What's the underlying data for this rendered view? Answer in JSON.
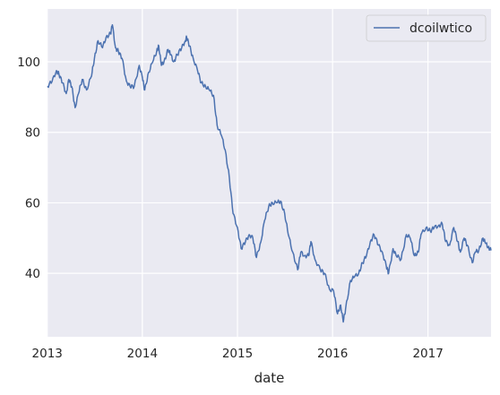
{
  "chart_data": {
    "type": "line",
    "title": "",
    "xlabel": "date",
    "ylabel": "",
    "xlim": [
      "2013-01-02",
      "2017-08-31"
    ],
    "ylim": [
      22,
      115
    ],
    "x_ticks": [
      "2013",
      "2014",
      "2015",
      "2016",
      "2017"
    ],
    "y_ticks": [
      40,
      60,
      80,
      100
    ],
    "grid": true,
    "legend_position": "top-right",
    "colors": {
      "background": "#eaeaf2",
      "grid": "#ffffff",
      "line": "#4c72b0"
    },
    "series": [
      {
        "name": "dcoilwtico",
        "points": [
          [
            "2013-01-02",
            93.1
          ],
          [
            "2013-01-20",
            94.5
          ],
          [
            "2013-02-05",
            97.5
          ],
          [
            "2013-02-15",
            96.5
          ],
          [
            "2013-03-01",
            94.0
          ],
          [
            "2013-03-15",
            91.0
          ],
          [
            "2013-03-25",
            95.0
          ],
          [
            "2013-04-05",
            93.0
          ],
          [
            "2013-04-18",
            87.0
          ],
          [
            "2013-05-01",
            91.0
          ],
          [
            "2013-05-15",
            95.0
          ],
          [
            "2013-06-01",
            92.0
          ],
          [
            "2013-06-20",
            96.0
          ],
          [
            "2013-07-01",
            101.0
          ],
          [
            "2013-07-15",
            106.0
          ],
          [
            "2013-08-01",
            104.0
          ],
          [
            "2013-08-15",
            107.0
          ],
          [
            "2013-09-01",
            108.0
          ],
          [
            "2013-09-08",
            110.5
          ],
          [
            "2013-09-20",
            104.0
          ],
          [
            "2013-10-01",
            103.0
          ],
          [
            "2013-10-15",
            101.0
          ],
          [
            "2013-11-01",
            94.5
          ],
          [
            "2013-11-15",
            93.0
          ],
          [
            "2013-12-01",
            93.0
          ],
          [
            "2013-12-20",
            99.0
          ],
          [
            "2014-01-01",
            95.5
          ],
          [
            "2014-01-10",
            92.0
          ],
          [
            "2014-01-25",
            97.0
          ],
          [
            "2014-02-10",
            100.0
          ],
          [
            "2014-02-25",
            103.0
          ],
          [
            "2014-03-05",
            104.5
          ],
          [
            "2014-03-15",
            99.0
          ],
          [
            "2014-03-25",
            100.0
          ],
          [
            "2014-04-10",
            103.5
          ],
          [
            "2014-04-20",
            102.0
          ],
          [
            "2014-05-01",
            100.0
          ],
          [
            "2014-05-15",
            102.0
          ],
          [
            "2014-06-01",
            104.0
          ],
          [
            "2014-06-15",
            106.0
          ],
          [
            "2014-06-20",
            107.0
          ],
          [
            "2014-07-01",
            104.5
          ],
          [
            "2014-07-15",
            101.0
          ],
          [
            "2014-08-01",
            97.5
          ],
          [
            "2014-08-15",
            94.0
          ],
          [
            "2014-09-01",
            93.0
          ],
          [
            "2014-09-15",
            92.0
          ],
          [
            "2014-10-01",
            90.5
          ],
          [
            "2014-10-15",
            82.0
          ],
          [
            "2014-11-01",
            79.0
          ],
          [
            "2014-11-15",
            75.0
          ],
          [
            "2014-12-01",
            67.0
          ],
          [
            "2014-12-15",
            57.0
          ],
          [
            "2015-01-01",
            53.0
          ],
          [
            "2015-01-15",
            47.0
          ],
          [
            "2015-02-01",
            49.0
          ],
          [
            "2015-02-15",
            51.0
          ],
          [
            "2015-03-01",
            50.0
          ],
          [
            "2015-03-15",
            44.5
          ],
          [
            "2015-04-01",
            49.0
          ],
          [
            "2015-04-15",
            55.0
          ],
          [
            "2015-05-01",
            59.0
          ],
          [
            "2015-05-15",
            60.0
          ],
          [
            "2015-06-01",
            60.0
          ],
          [
            "2015-06-15",
            60.5
          ],
          [
            "2015-07-01",
            57.0
          ],
          [
            "2015-07-15",
            51.0
          ],
          [
            "2015-08-01",
            46.0
          ],
          [
            "2015-08-20",
            41.0
          ],
          [
            "2015-09-01",
            46.0
          ],
          [
            "2015-09-15",
            45.0
          ],
          [
            "2015-10-01",
            45.0
          ],
          [
            "2015-10-10",
            49.0
          ],
          [
            "2015-10-25",
            44.0
          ],
          [
            "2015-11-15",
            41.0
          ],
          [
            "2015-12-01",
            40.0
          ],
          [
            "2015-12-20",
            35.5
          ],
          [
            "2016-01-05",
            35.0
          ],
          [
            "2016-01-20",
            28.5
          ],
          [
            "2016-02-01",
            31.0
          ],
          [
            "2016-02-11",
            26.2
          ],
          [
            "2016-02-20",
            30.0
          ],
          [
            "2016-03-10",
            38.0
          ],
          [
            "2016-03-25",
            39.0
          ],
          [
            "2016-04-10",
            40.0
          ],
          [
            "2016-04-25",
            43.0
          ],
          [
            "2016-05-10",
            45.0
          ],
          [
            "2016-05-25",
            49.0
          ],
          [
            "2016-06-08",
            51.0
          ],
          [
            "2016-06-25",
            48.0
          ],
          [
            "2016-07-10",
            46.0
          ],
          [
            "2016-07-25",
            42.0
          ],
          [
            "2016-08-03",
            40.0
          ],
          [
            "2016-08-20",
            47.0
          ],
          [
            "2016-09-01",
            45.0
          ],
          [
            "2016-09-20",
            44.0
          ],
          [
            "2016-10-10",
            51.0
          ],
          [
            "2016-10-25",
            50.0
          ],
          [
            "2016-11-10",
            45.0
          ],
          [
            "2016-11-25",
            46.0
          ],
          [
            "2016-12-05",
            51.0
          ],
          [
            "2016-12-25",
            53.0
          ],
          [
            "2017-01-10",
            52.0
          ],
          [
            "2017-01-25",
            53.0
          ],
          [
            "2017-02-10",
            53.5
          ],
          [
            "2017-02-25",
            54.0
          ],
          [
            "2017-03-10",
            49.0
          ],
          [
            "2017-03-25",
            48.0
          ],
          [
            "2017-04-10",
            53.0
          ],
          [
            "2017-04-25",
            49.0
          ],
          [
            "2017-05-05",
            46.0
          ],
          [
            "2017-05-20",
            50.0
          ],
          [
            "2017-06-01",
            48.0
          ],
          [
            "2017-06-20",
            43.0
          ],
          [
            "2017-07-01",
            46.0
          ],
          [
            "2017-07-15",
            46.5
          ],
          [
            "2017-07-31",
            50.0
          ],
          [
            "2017-08-10",
            48.5
          ],
          [
            "2017-08-20",
            47.5
          ],
          [
            "2017-08-31",
            46.5
          ]
        ]
      }
    ]
  }
}
